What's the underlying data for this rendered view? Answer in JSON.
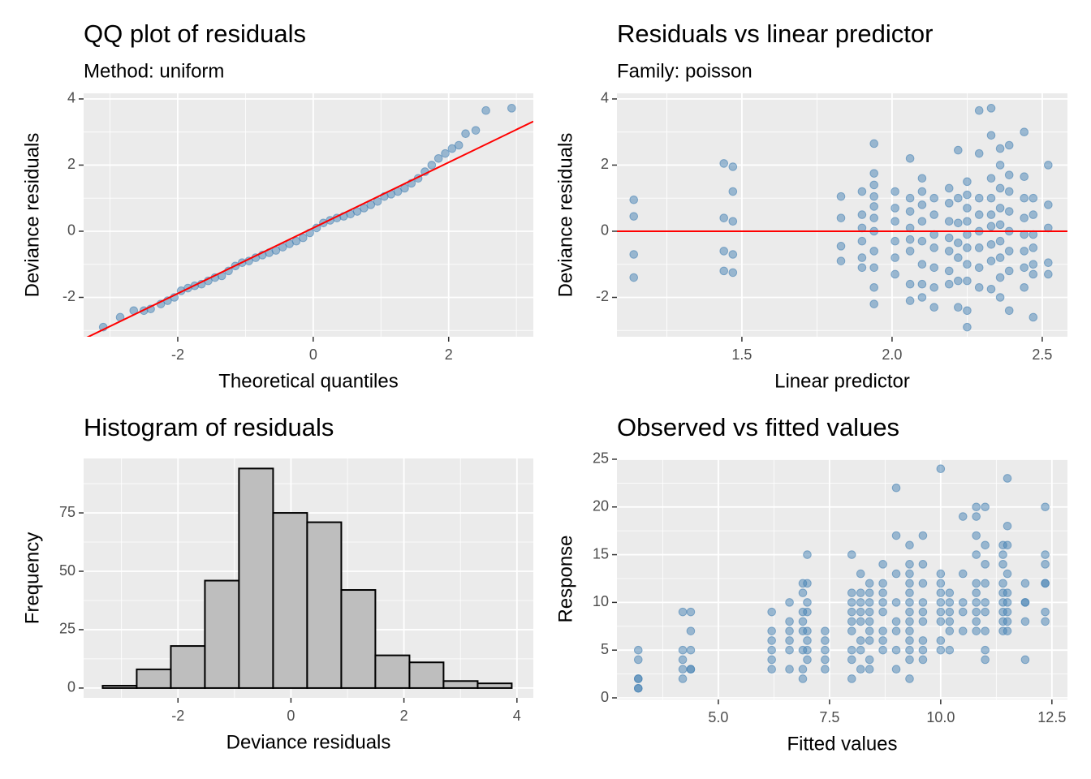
{
  "chart_data": [
    {
      "type": "scatter",
      "title": "QQ plot of residuals",
      "subtitle": "Method: uniform",
      "xlabel": "Theoretical quantiles",
      "ylabel": "Deviance residuals",
      "xlim": [
        -3.39,
        3.25
      ],
      "ylim": [
        -3.19,
        4.17
      ],
      "xticks": [
        -2,
        0,
        2
      ],
      "yticks": [
        -2,
        0,
        2,
        4
      ],
      "grid": true,
      "color": "#4682b4",
      "x": [
        -3.1,
        -2.85,
        -2.65,
        -2.5,
        -2.4,
        -2.25,
        -2.15,
        -2.05,
        -1.95,
        -1.85,
        -1.75,
        -1.65,
        -1.55,
        -1.45,
        -1.35,
        -1.25,
        -1.15,
        -1.05,
        -0.95,
        -0.85,
        -0.75,
        -0.65,
        -0.55,
        -0.45,
        -0.35,
        -0.25,
        -0.15,
        -0.05,
        0.05,
        0.15,
        0.25,
        0.35,
        0.45,
        0.55,
        0.65,
        0.75,
        0.85,
        0.95,
        1.05,
        1.15,
        1.25,
        1.35,
        1.45,
        1.55,
        1.65,
        1.75,
        1.85,
        1.95,
        2.05,
        2.15,
        2.25,
        2.4,
        2.55,
        2.93
      ],
      "values": [
        -2.9,
        -2.6,
        -2.4,
        -2.4,
        -2.35,
        -2.2,
        -2.1,
        -2.0,
        -1.8,
        -1.72,
        -1.65,
        -1.6,
        -1.5,
        -1.4,
        -1.35,
        -1.2,
        -1.05,
        -0.95,
        -0.9,
        -0.8,
        -0.72,
        -0.65,
        -0.58,
        -0.48,
        -0.38,
        -0.3,
        -0.2,
        -0.05,
        0.1,
        0.25,
        0.33,
        0.4,
        0.45,
        0.52,
        0.6,
        0.7,
        0.8,
        0.9,
        1.05,
        1.12,
        1.2,
        1.3,
        1.45,
        1.6,
        1.8,
        2.0,
        2.2,
        2.35,
        2.5,
        2.6,
        2.95,
        3.05,
        3.65,
        3.72
      ],
      "line": {
        "x": [
          -3.39,
          3.25
        ],
        "y": [
          -3.26,
          3.32
        ],
        "color": "#ff0000"
      }
    },
    {
      "type": "scatter",
      "title": "Residuals vs linear predictor",
      "subtitle": "Family: poisson",
      "xlabel": "Linear predictor",
      "ylabel": "Deviance residuals",
      "xlim": [
        1.084,
        2.584
      ],
      "ylim": [
        -3.19,
        4.17
      ],
      "xticks": [
        {
          "value": 1.5,
          "label": "1.5"
        },
        {
          "value": 2.0,
          "label": "2.0"
        },
        {
          "value": 2.5,
          "label": "2.5"
        }
      ],
      "yticks": [
        -2,
        0,
        2,
        4
      ],
      "grid": true,
      "color": "#4682b4",
      "x": [
        1.14,
        1.14,
        1.14,
        1.14,
        1.44,
        1.44,
        1.44,
        1.44,
        1.47,
        1.47,
        1.47,
        1.47,
        1.47,
        1.83,
        1.83,
        1.83,
        1.83,
        1.9,
        1.9,
        1.9,
        1.9,
        1.9,
        1.9,
        1.94,
        1.94,
        1.94,
        1.94,
        1.94,
        1.94,
        1.94,
        1.94,
        1.94,
        1.94,
        1.94,
        2.01,
        2.01,
        2.01,
        2.01,
        2.01,
        2.01,
        2.06,
        2.06,
        2.06,
        2.06,
        2.06,
        2.06,
        2.06,
        2.06,
        2.1,
        2.1,
        2.1,
        2.1,
        2.1,
        2.1,
        2.1,
        2.1,
        2.14,
        2.14,
        2.14,
        2.14,
        2.14,
        2.14,
        2.14,
        2.19,
        2.19,
        2.19,
        2.19,
        2.19,
        2.19,
        2.19,
        2.22,
        2.22,
        2.22,
        2.22,
        2.22,
        2.22,
        2.22,
        2.25,
        2.25,
        2.25,
        2.25,
        2.25,
        2.25,
        2.25,
        2.25,
        2.25,
        2.25,
        2.29,
        2.29,
        2.29,
        2.29,
        2.29,
        2.29,
        2.29,
        2.29,
        2.33,
        2.33,
        2.33,
        2.33,
        2.33,
        2.33,
        2.33,
        2.33,
        2.33,
        2.36,
        2.36,
        2.36,
        2.36,
        2.36,
        2.36,
        2.36,
        2.36,
        2.36,
        2.39,
        2.39,
        2.39,
        2.39,
        2.39,
        2.39,
        2.39,
        2.39,
        2.44,
        2.44,
        2.44,
        2.44,
        2.44,
        2.44,
        2.44,
        2.44,
        2.47,
        2.47,
        2.47,
        2.47,
        2.47,
        2.47,
        2.47,
        2.52,
        2.52,
        2.52,
        2.52,
        2.52
      ],
      "values": [
        0.95,
        0.45,
        -0.7,
        -1.4,
        2.05,
        0.4,
        -0.6,
        -1.2,
        1.95,
        1.2,
        0.3,
        -0.7,
        -1.25,
        1.05,
        0.4,
        -0.45,
        -0.9,
        1.2,
        0.5,
        0.1,
        -0.3,
        -0.8,
        -1.1,
        2.65,
        1.75,
        1.4,
        1.05,
        0.75,
        0.4,
        0,
        -0.6,
        -1.1,
        -1.7,
        -2.2,
        1.2,
        0.7,
        0.3,
        -0.3,
        -0.8,
        -1.3,
        2.2,
        1.0,
        0.6,
        0.1,
        -0.25,
        -0.6,
        -1.6,
        -2.1,
        1.6,
        1.2,
        0.8,
        0.3,
        -0.3,
        -1.0,
        -1.6,
        -2.0,
        1.0,
        0.5,
        -0.1,
        -0.5,
        -1.1,
        -1.7,
        -2.3,
        1.3,
        0.85,
        0.3,
        -0.2,
        -0.6,
        -1.2,
        -1.6,
        2.45,
        1.0,
        0.25,
        -0.35,
        -0.8,
        -1.5,
        -2.3,
        1.5,
        1.1,
        0.7,
        0.3,
        -0.1,
        -0.5,
        -1.0,
        -1.5,
        -2.4,
        -2.9,
        3.65,
        2.35,
        1.0,
        0.5,
        0,
        -0.5,
        -1.1,
        -1.7,
        3.72,
        2.9,
        1.6,
        1.0,
        0.5,
        0.15,
        -0.4,
        -0.9,
        -1.75,
        2.5,
        2.0,
        1.3,
        0.7,
        0.2,
        -0.3,
        -0.8,
        -1.4,
        -2.0,
        2.6,
        1.7,
        1.2,
        0.6,
        0,
        -0.6,
        -1.2,
        -2.4,
        3.0,
        1.65,
        1.0,
        0.4,
        -0.1,
        -0.6,
        -1.1,
        -1.7,
        1.0,
        0.5,
        -0.1,
        -0.5,
        -1.0,
        -1.3,
        -2.6,
        2.0,
        0.8,
        0.1,
        -0.95,
        -1.3
      ],
      "hline": {
        "y": 0,
        "color": "#ff0000"
      }
    },
    {
      "type": "histogram",
      "title": "Histogram of residuals",
      "xlabel": "Deviance residuals",
      "ylabel": "Frequency",
      "xlim": [
        -3.67,
        4.29
      ],
      "ylim": [
        -4.2,
        98.3
      ],
      "xticks": [
        -2,
        0,
        2,
        4
      ],
      "yticks": [
        0,
        25,
        50,
        75
      ],
      "grid": true,
      "color": "#bebebe",
      "edgecolor": "#000000",
      "bins": [
        -3.333,
        -2.73,
        -2.126,
        -1.523,
        -0.92,
        -0.316,
        0.287,
        0.891,
        1.494,
        2.098,
        2.701,
        3.305,
        3.908
      ],
      "values": [
        1,
        8,
        18,
        46,
        94,
        75,
        71,
        42,
        14,
        11,
        3,
        2
      ]
    },
    {
      "type": "scatter",
      "title": "Observed vs fitted values",
      "xlabel": "Fitted values",
      "ylabel": "Response",
      "xlim": [
        2.72,
        12.85
      ],
      "ylim": [
        -0.17,
        25.08
      ],
      "xticks": [
        {
          "value": 5,
          "label": "5.0"
        },
        {
          "value": 7.5,
          "label": "7.5"
        },
        {
          "value": 10,
          "label": "10.0"
        },
        {
          "value": 12.5,
          "label": "12.5"
        }
      ],
      "yticks": [
        0,
        5,
        10,
        15,
        20,
        25
      ],
      "grid": true,
      "color": "#4682b4",
      "x": [
        3.2,
        3.2,
        3.2,
        3.2,
        3.2,
        3.2,
        4.2,
        4.2,
        4.2,
        4.2,
        4.2,
        4.38,
        4.38,
        4.38,
        4.38,
        4.38,
        6.2,
        6.2,
        6.2,
        6.2,
        6.2,
        6.2,
        6.6,
        6.6,
        6.6,
        6.6,
        6.6,
        6.6,
        6.9,
        6.9,
        6.9,
        6.9,
        6.9,
        6.9,
        6.9,
        6.9,
        7.0,
        7.0,
        7.0,
        7.0,
        7.0,
        7.0,
        7.0,
        7.0,
        7.4,
        7.4,
        7.4,
        7.4,
        7.4,
        8.0,
        8.0,
        8.0,
        8.0,
        8.0,
        8.0,
        8.0,
        8.0,
        8.0,
        8.2,
        8.2,
        8.2,
        8.2,
        8.2,
        8.2,
        8.2,
        8.2,
        8.4,
        8.4,
        8.4,
        8.4,
        8.4,
        8.4,
        8.4,
        8.4,
        8.4,
        8.7,
        8.7,
        8.7,
        8.7,
        8.7,
        8.7,
        8.7,
        8.7,
        9.0,
        9.0,
        9.0,
        9.0,
        9.0,
        9.0,
        9.0,
        9.0,
        9.3,
        9.3,
        9.3,
        9.3,
        9.3,
        9.3,
        9.3,
        9.3,
        9.3,
        9.3,
        9.3,
        9.3,
        9.3,
        9.6,
        9.6,
        9.6,
        9.6,
        9.6,
        9.6,
        9.6,
        9.6,
        9.6,
        10.0,
        10.0,
        10.0,
        10.0,
        10.0,
        10.0,
        10.0,
        10.0,
        10.0,
        10.2,
        10.2,
        10.2,
        10.2,
        10.2,
        10.2,
        10.5,
        10.5,
        10.5,
        10.5,
        10.5,
        10.8,
        10.8,
        10.8,
        10.8,
        10.8,
        10.8,
        10.8,
        10.8,
        10.8,
        10.8,
        11.0,
        11.0,
        11.0,
        11.0,
        11.0,
        11.0,
        11.0,
        11.0,
        11.0,
        11.4,
        11.4,
        11.4,
        11.4,
        11.4,
        11.4,
        11.4,
        11.4,
        11.4,
        11.5,
        11.5,
        11.5,
        11.5,
        11.5,
        11.5,
        11.5,
        11.5,
        11.5,
        11.9,
        11.9,
        11.9,
        11.9,
        11.9,
        12.35,
        12.35,
        12.35,
        12.35,
        12.35,
        12.35,
        12.35
      ],
      "values": [
        5,
        4,
        2,
        2,
        1,
        1,
        9,
        5,
        4,
        3,
        2,
        9,
        7,
        5,
        3,
        3,
        9,
        7,
        6,
        5,
        4,
        3,
        10,
        8,
        7,
        6,
        5,
        3,
        12,
        11,
        9,
        8,
        7,
        5,
        3,
        2,
        15,
        12,
        10,
        9,
        7,
        6,
        5,
        4,
        7,
        6,
        5,
        4,
        3,
        15,
        11,
        10,
        9,
        8,
        7,
        5,
        4,
        2,
        13,
        11,
        10,
        9,
        8,
        6,
        5,
        3,
        12,
        11,
        10,
        9,
        8,
        7,
        6,
        4,
        3,
        14,
        12,
        11,
        10,
        9,
        7,
        6,
        5,
        22,
        17,
        13,
        10,
        8,
        7,
        5,
        3,
        16,
        14,
        13,
        12,
        11,
        10,
        9,
        8,
        7,
        6,
        5,
        4,
        2,
        17,
        14,
        12,
        10,
        9,
        8,
        6,
        5,
        4,
        24,
        13,
        12,
        11,
        10,
        9,
        8,
        6,
        5,
        11,
        10,
        9,
        8,
        7,
        5,
        19,
        13,
        10,
        9,
        7,
        20,
        19,
        17,
        15,
        12,
        11,
        10,
        9,
        8,
        7,
        20,
        16,
        14,
        12,
        10,
        9,
        7,
        5,
        4,
        16,
        15,
        14,
        12,
        11,
        10,
        9,
        8,
        7,
        23,
        18,
        16,
        13,
        11,
        10,
        9,
        8,
        7,
        12,
        10,
        10,
        8,
        4,
        20,
        15,
        14,
        12,
        12,
        9,
        8
      ]
    }
  ]
}
